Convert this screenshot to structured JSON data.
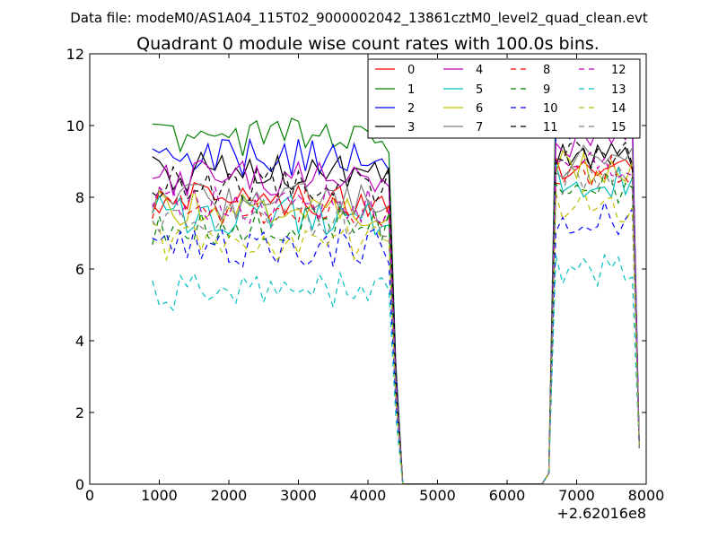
{
  "chart_data": {
    "type": "line",
    "suptitle": "Data file: modeM0/AS1A04_115T02_9000002042_13861cztM0_level2_quad_clean.evt",
    "title": "Quadrant 0 module wise count rates with 100.0s bins.",
    "xlabel": "",
    "ylabel": "",
    "x_offset_label": "+2.62016e8",
    "xlim": [
      0,
      8000
    ],
    "ylim": [
      0,
      12
    ],
    "x_ticks": [
      0,
      1000,
      2000,
      3000,
      4000,
      5000,
      6000,
      7000,
      8000
    ],
    "x_tick_labels": [
      "0",
      "1000",
      "2000",
      "3000",
      "4000",
      "5000",
      "6000",
      "7000",
      "8000"
    ],
    "y_ticks": [
      0,
      2,
      4,
      6,
      8,
      10,
      12
    ],
    "y_tick_labels": [
      "0",
      "2",
      "4",
      "6",
      "8",
      "10",
      "12"
    ],
    "legend_position": "top-right",
    "series": [
      {
        "name": "0",
        "color": "#ff0000",
        "dash": "solid",
        "level": 8.0,
        "post": 9.0
      },
      {
        "name": "1",
        "color": "#008000",
        "dash": "solid",
        "level": 9.7,
        "post": 10.4
      },
      {
        "name": "2",
        "color": "#0000ff",
        "dash": "solid",
        "level": 9.1,
        "post": 10.0
      },
      {
        "name": "3",
        "color": "#000000",
        "dash": "solid",
        "level": 8.7,
        "post": 9.3
      },
      {
        "name": "4",
        "color": "#bf00bf",
        "dash": "solid",
        "level": 8.5,
        "post": 9.6
      },
      {
        "name": "5",
        "color": "#00bfbf",
        "dash": "solid",
        "level": 7.5,
        "post": 8.5
      },
      {
        "name": "6",
        "color": "#bfbf00",
        "dash": "solid",
        "level": 7.7,
        "post": 8.8
      },
      {
        "name": "7",
        "color": "#808080",
        "dash": "solid",
        "level": 7.9,
        "post": 9.0
      },
      {
        "name": "8",
        "color": "#ff0000",
        "dash": "dashed",
        "level": 7.7,
        "post": 8.7
      },
      {
        "name": "9",
        "color": "#008000",
        "dash": "dashed",
        "level": 7.2,
        "post": 8.2
      },
      {
        "name": "10",
        "color": "#0000ff",
        "dash": "dashed",
        "level": 6.6,
        "post": 7.4
      },
      {
        "name": "11",
        "color": "#000000",
        "dash": "dashed",
        "level": 8.3,
        "post": 9.2
      },
      {
        "name": "12",
        "color": "#bf00bf",
        "dash": "dashed",
        "level": 7.8,
        "post": 8.8
      },
      {
        "name": "13",
        "color": "#00bfbf",
        "dash": "dashed",
        "level": 5.4,
        "post": 6.0
      },
      {
        "name": "14",
        "color": "#bfbf00",
        "dash": "dashed",
        "level": 6.8,
        "post": 7.8
      },
      {
        "name": "15",
        "color": "#808080",
        "dash": "dashed",
        "level": 7.4,
        "post": 8.4
      }
    ],
    "time_segments": {
      "bin_width": 100,
      "on1_start": 900,
      "on1_end": 4300,
      "drop_end": 4500,
      "zero_end": 6500,
      "rise_end": 6700,
      "on2_end": 7800,
      "final_end": 7900
    }
  }
}
